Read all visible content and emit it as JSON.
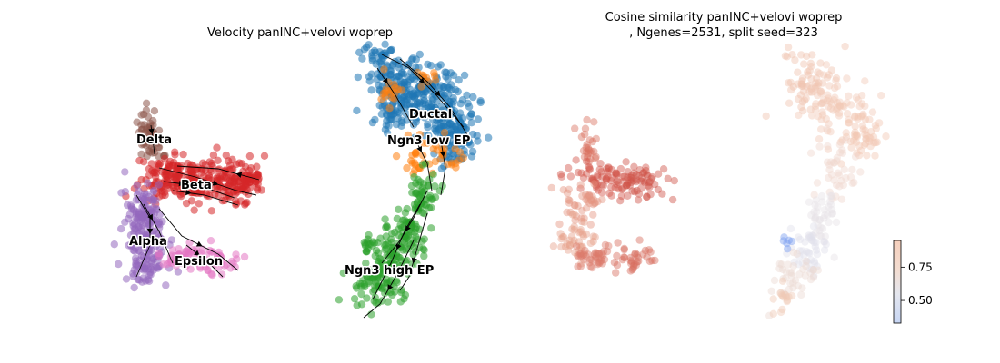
{
  "chart_data": [
    {
      "type": "scatter",
      "title": "Velocity panINC+velovi woprep",
      "axes_visible": false,
      "overlay": "velocity-streamlines",
      "clusters": [
        {
          "name": "Delta",
          "color": "#8c564b"
        },
        {
          "name": "Beta",
          "color": "#d62728"
        },
        {
          "name": "Alpha",
          "color": "#9467bd"
        },
        {
          "name": "Epsilon",
          "color": "#e377c2"
        },
        {
          "name": "Ductal",
          "color": "#1f77b4"
        },
        {
          "name": "Ngn3 low EP",
          "color": "#ff7f0e"
        },
        {
          "name": "Ngn3 high EP",
          "color": "#2ca02c"
        }
      ]
    },
    {
      "type": "scatter",
      "title_line1": "Cosine similarity panINC+velovi woprep",
      "title_line2": ", Ngenes=2531, split seed=323",
      "axes_visible": false,
      "colormap": "coolwarm",
      "colorbar": {
        "range": [
          0.33,
          0.95
        ],
        "ticks": [
          0.5,
          0.75
        ],
        "tick_labels": [
          "0.50",
          "0.75"
        ]
      }
    }
  ]
}
